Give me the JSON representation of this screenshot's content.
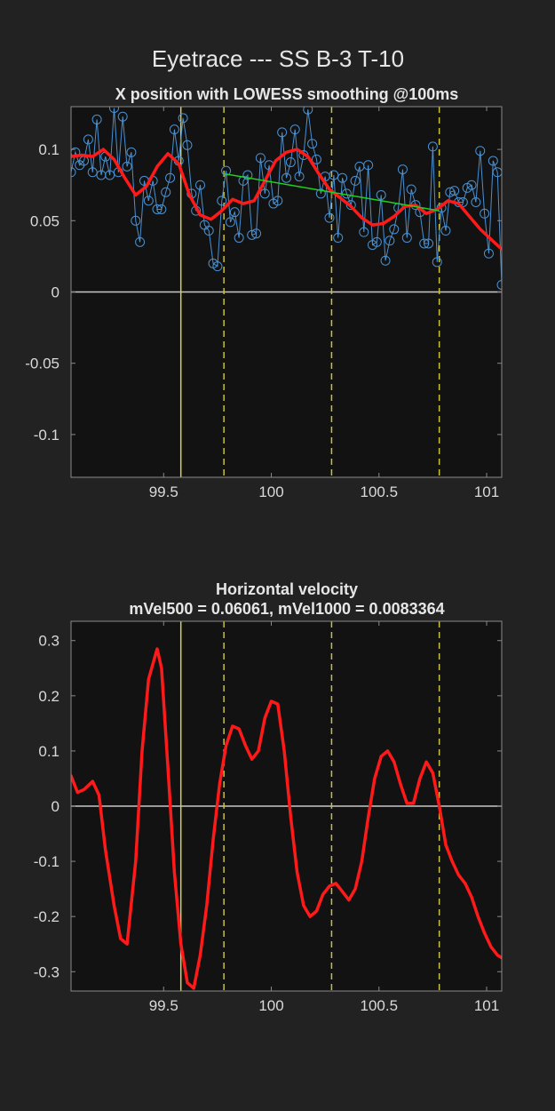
{
  "figure": {
    "title": "Eyetrace --- SS B-3 T-10"
  },
  "colors": {
    "background": "#222222",
    "axes_bg": "#121212",
    "axes_edge": "#8a8a8a",
    "raw": "#4a90d0",
    "smooth": "#ff1a1a",
    "fit": "#20d020",
    "zero": "#c8c8c8",
    "solid_marker": "#d9d050",
    "dashed_marker": "#c8c040"
  },
  "chart_data": [
    {
      "type": "line",
      "title": "X position with LOWESS smoothing @100ms",
      "xlim": [
        99.07,
        101.07
      ],
      "ylim": [
        -0.13,
        0.13
      ],
      "x_ticks": [
        99.5,
        100,
        100.5,
        101
      ],
      "x_tick_labels": [
        "99.5",
        "100",
        "100.5",
        "101"
      ],
      "y_ticks": [
        0.1,
        0.05,
        0,
        -0.05,
        -0.1
      ],
      "y_tick_labels": [
        "0.1",
        "0.05",
        "0",
        "-0.05",
        "-0.1"
      ],
      "vertical_markers": [
        {
          "x": 99.58,
          "style": "solid"
        },
        {
          "x": 99.78,
          "style": "dashed"
        },
        {
          "x": 100.28,
          "style": "dashed"
        },
        {
          "x": 100.78,
          "style": "dashed"
        }
      ],
      "zero_line": 0,
      "series": [
        {
          "role": "raw_samples",
          "x": [
            99.07,
            99.09,
            99.11,
            99.13,
            99.15,
            99.17,
            99.19,
            99.21,
            99.23,
            99.25,
            99.27,
            99.29,
            99.31,
            99.33,
            99.35,
            99.37,
            99.39,
            99.41,
            99.43,
            99.45,
            99.47,
            99.49,
            99.51,
            99.53,
            99.55,
            99.57,
            99.59,
            99.61,
            99.63,
            99.65,
            99.67,
            99.69,
            99.71,
            99.73,
            99.75,
            99.77,
            99.79,
            99.81,
            99.83,
            99.85,
            99.87,
            99.89,
            99.91,
            99.93,
            99.95,
            99.97,
            99.99,
            100.01,
            100.03,
            100.05,
            100.07,
            100.09,
            100.11,
            100.13,
            100.15,
            100.17,
            100.19,
            100.21,
            100.23,
            100.25,
            100.27,
            100.29,
            100.31,
            100.33,
            100.35,
            100.37,
            100.39,
            100.41,
            100.43,
            100.45,
            100.47,
            100.49,
            100.51,
            100.53,
            100.55,
            100.57,
            100.59,
            100.61,
            100.63,
            100.65,
            100.67,
            100.69,
            100.71,
            100.73,
            100.75,
            100.77,
            100.79,
            100.81,
            100.83,
            100.85,
            100.87,
            100.89,
            100.91,
            100.93,
            100.95,
            100.97,
            100.99,
            101.01,
            101.03,
            101.05,
            101.07
          ],
          "y": [
            0.084,
            0.098,
            0.089,
            0.092,
            0.107,
            0.084,
            0.121,
            0.082,
            0.095,
            0.082,
            0.129,
            0.084,
            0.123,
            0.088,
            0.098,
            0.05,
            0.035,
            0.078,
            0.064,
            0.078,
            0.058,
            0.058,
            0.07,
            0.08,
            0.114,
            0.092,
            0.122,
            0.103,
            0.069,
            0.057,
            0.075,
            0.047,
            0.043,
            0.02,
            0.018,
            0.064,
            0.085,
            0.049,
            0.056,
            0.038,
            0.078,
            0.082,
            0.04,
            0.041,
            0.094,
            0.069,
            0.089,
            0.062,
            0.064,
            0.112,
            0.08,
            0.091,
            0.114,
            0.081,
            0.096,
            0.128,
            0.104,
            0.093,
            0.069,
            0.081,
            0.052,
            0.082,
            0.038,
            0.08,
            0.069,
            0.061,
            0.078,
            0.088,
            0.042,
            0.089,
            0.033,
            0.035,
            0.068,
            0.022,
            0.036,
            0.044,
            0.059,
            0.086,
            0.038,
            0.072,
            0.061,
            0.056,
            0.034,
            0.034,
            0.102,
            0.021,
            0.059,
            0.043,
            0.07,
            0.071,
            0.063,
            0.063,
            0.073,
            0.075,
            0.063,
            0.099,
            0.055,
            0.027,
            0.092,
            0.084,
            0.005
          ]
        },
        {
          "role": "lowess_smoothed",
          "x": [
            99.07,
            99.12,
            99.17,
            99.22,
            99.27,
            99.32,
            99.37,
            99.42,
            99.47,
            99.52,
            99.57,
            99.62,
            99.67,
            99.72,
            99.77,
            99.82,
            99.87,
            99.92,
            99.97,
            100.02,
            100.07,
            100.12,
            100.17,
            100.22,
            100.27,
            100.32,
            100.37,
            100.42,
            100.47,
            100.52,
            100.57,
            100.62,
            100.67,
            100.72,
            100.77,
            100.82,
            100.87,
            100.92,
            100.97,
            101.02,
            101.07
          ],
          "y": [
            0.095,
            0.096,
            0.095,
            0.1,
            0.093,
            0.08,
            0.068,
            0.074,
            0.088,
            0.097,
            0.09,
            0.068,
            0.054,
            0.051,
            0.057,
            0.065,
            0.062,
            0.064,
            0.078,
            0.092,
            0.098,
            0.1,
            0.095,
            0.083,
            0.072,
            0.066,
            0.06,
            0.052,
            0.047,
            0.048,
            0.053,
            0.06,
            0.061,
            0.055,
            0.058,
            0.064,
            0.062,
            0.053,
            0.044,
            0.037,
            0.03
          ]
        },
        {
          "role": "linear_fit",
          "x": [
            99.78,
            100.78
          ],
          "y": [
            0.083,
            0.057
          ]
        }
      ]
    },
    {
      "type": "line",
      "title": "Horizontal velocity",
      "subtitle": "mVel500 = 0.06061, mVel1000 = 0.0083364",
      "xlim": [
        99.07,
        101.07
      ],
      "ylim": [
        -0.335,
        0.335
      ],
      "x_ticks": [
        99.5,
        100,
        100.5,
        101
      ],
      "x_tick_labels": [
        "99.5",
        "100",
        "100.5",
        "101"
      ],
      "y_ticks": [
        0.3,
        0.2,
        0.1,
        0,
        -0.1,
        -0.2,
        -0.3
      ],
      "y_tick_labels": [
        "0.3",
        "0.2",
        "0.1",
        "0",
        "-0.1",
        "-0.2",
        "-0.3"
      ],
      "vertical_markers": [
        {
          "x": 99.58,
          "style": "solid"
        },
        {
          "x": 99.78,
          "style": "dashed"
        },
        {
          "x": 100.28,
          "style": "dashed"
        },
        {
          "x": 100.78,
          "style": "dashed"
        }
      ],
      "zero_line": 0,
      "series": [
        {
          "role": "velocity",
          "x": [
            99.07,
            99.1,
            99.13,
            99.17,
            99.2,
            99.23,
            99.27,
            99.3,
            99.33,
            99.37,
            99.4,
            99.43,
            99.47,
            99.49,
            99.52,
            99.55,
            99.58,
            99.61,
            99.64,
            99.67,
            99.7,
            99.73,
            99.76,
            99.79,
            99.82,
            99.85,
            99.88,
            99.91,
            99.94,
            99.97,
            100.0,
            100.03,
            100.06,
            100.09,
            100.12,
            100.15,
            100.18,
            100.21,
            100.24,
            100.27,
            100.3,
            100.33,
            100.36,
            100.39,
            100.42,
            100.45,
            100.48,
            100.51,
            100.54,
            100.57,
            100.6,
            100.63,
            100.66,
            100.69,
            100.72,
            100.75,
            100.78,
            100.81,
            100.84,
            100.87,
            100.9,
            100.93,
            100.96,
            100.99,
            101.02,
            101.05,
            101.07
          ],
          "y": [
            0.055,
            0.025,
            0.03,
            0.045,
            0.02,
            -0.08,
            -0.18,
            -0.24,
            -0.25,
            -0.1,
            0.1,
            0.23,
            0.285,
            0.25,
            0.07,
            -0.12,
            -0.25,
            -0.32,
            -0.33,
            -0.27,
            -0.18,
            -0.06,
            0.04,
            0.11,
            0.145,
            0.14,
            0.11,
            0.085,
            0.1,
            0.16,
            0.19,
            0.185,
            0.1,
            -0.02,
            -0.12,
            -0.18,
            -0.2,
            -0.19,
            -0.16,
            -0.145,
            -0.14,
            -0.155,
            -0.17,
            -0.15,
            -0.1,
            -0.02,
            0.05,
            0.09,
            0.1,
            0.08,
            0.04,
            0.005,
            0.005,
            0.05,
            0.08,
            0.06,
            0.0,
            -0.07,
            -0.1,
            -0.125,
            -0.14,
            -0.165,
            -0.2,
            -0.23,
            -0.255,
            -0.27,
            -0.275
          ]
        }
      ]
    }
  ]
}
